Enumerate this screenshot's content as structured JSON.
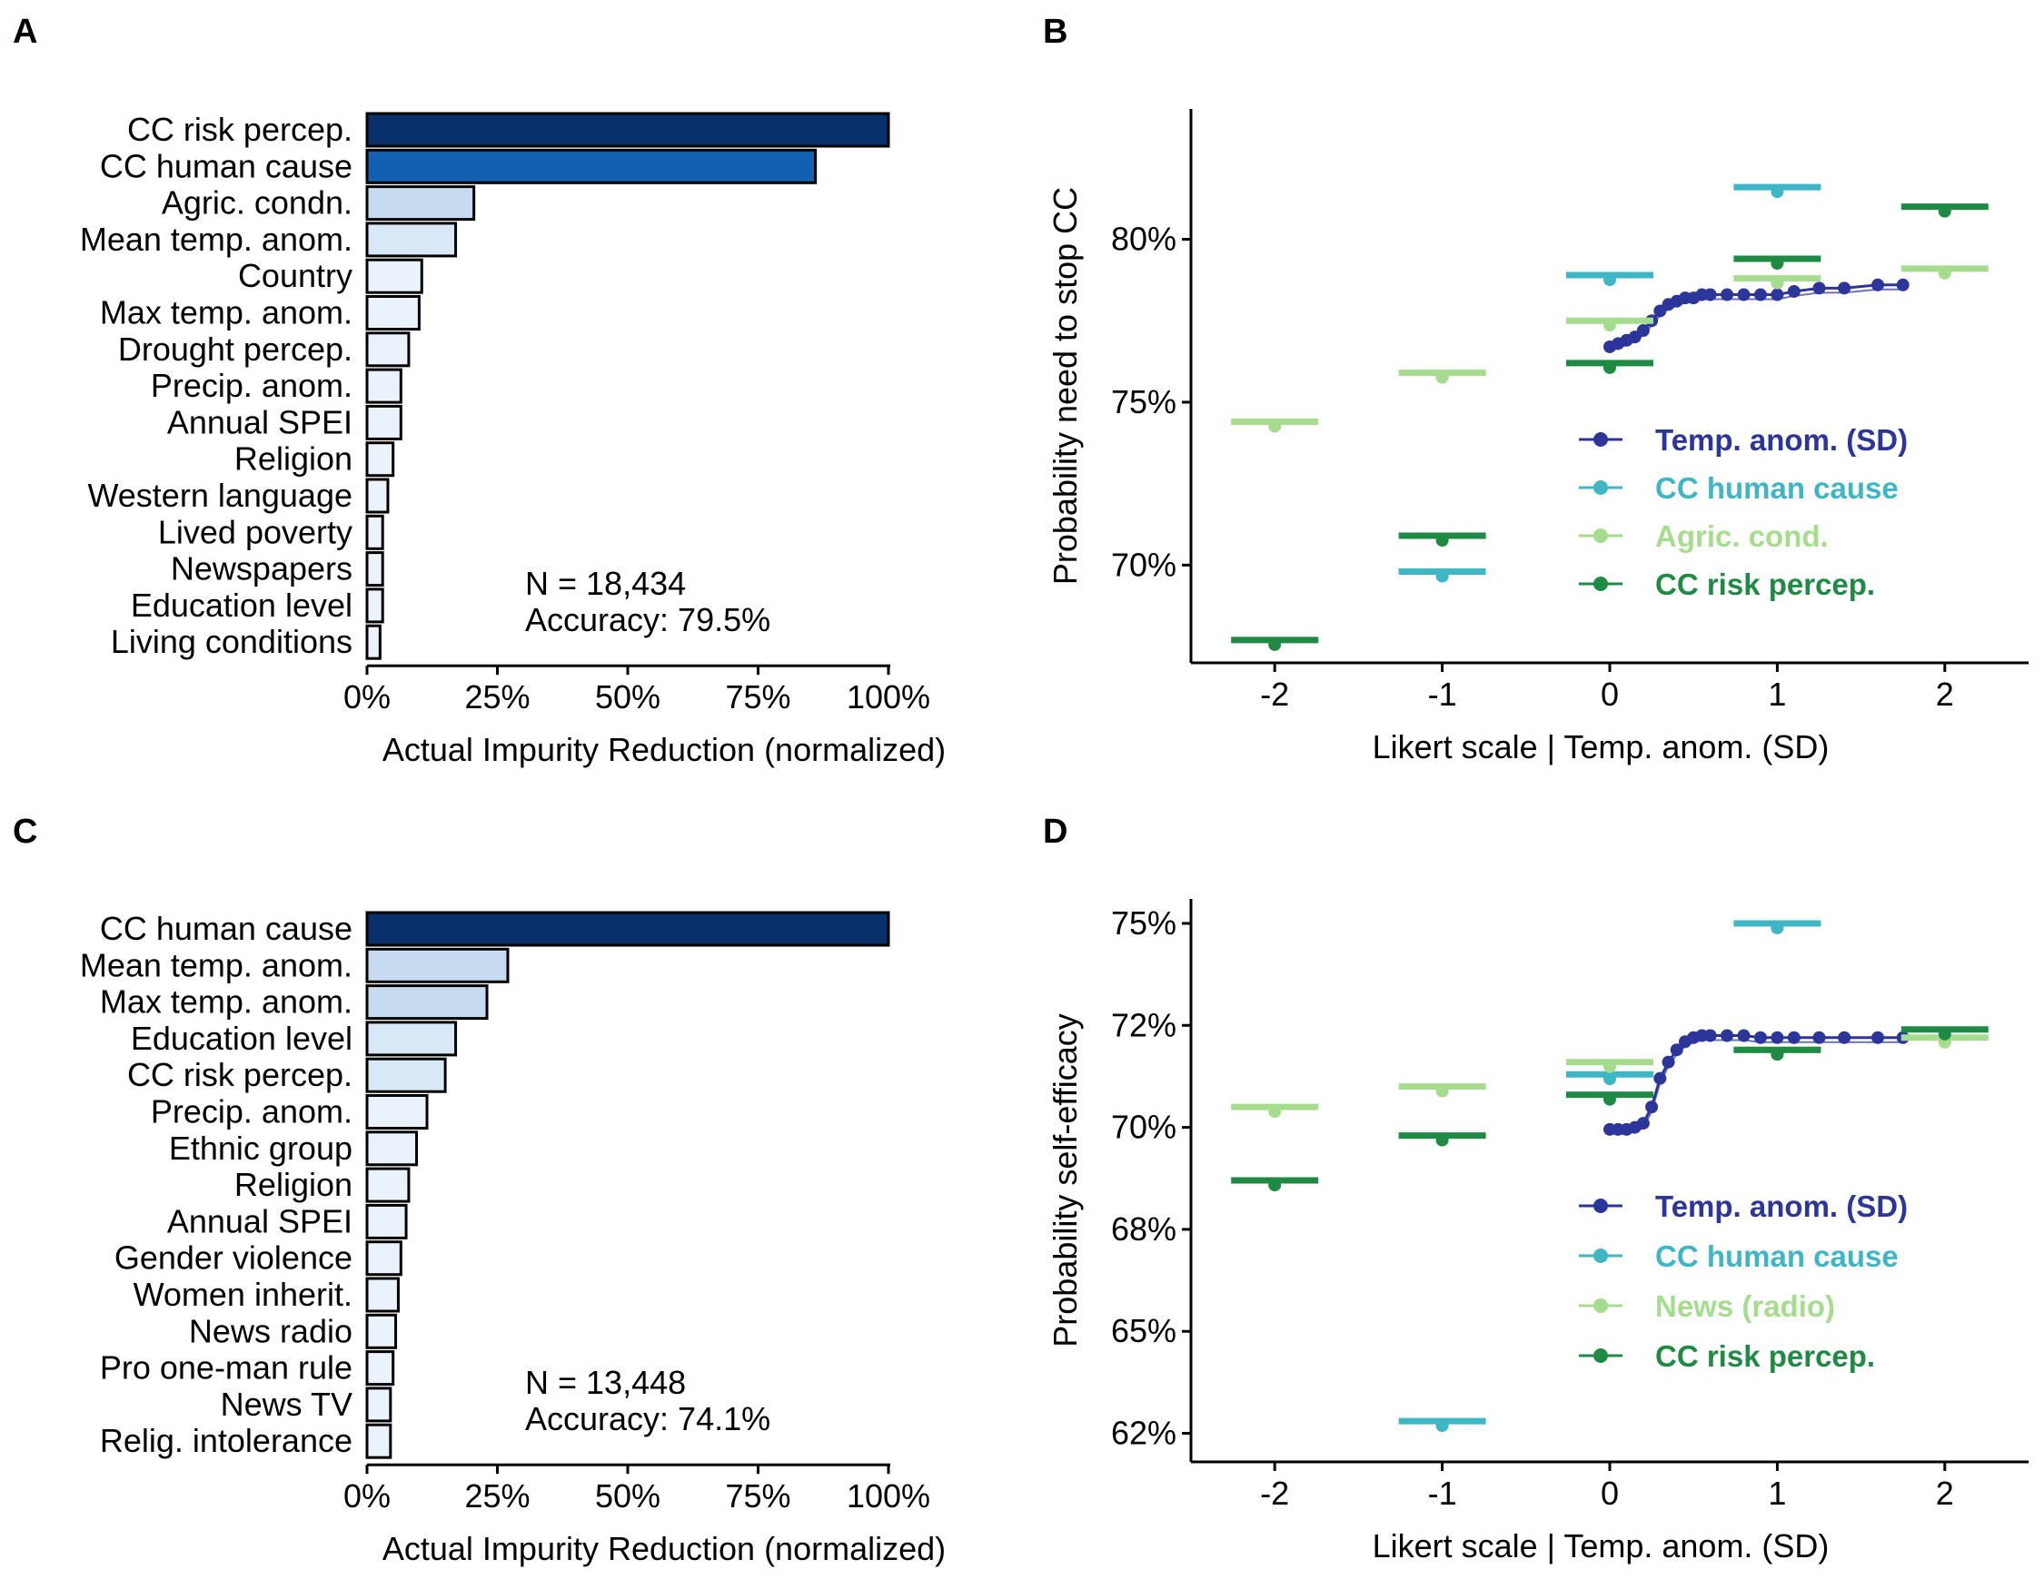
{
  "panels": [
    {
      "label": "A"
    },
    {
      "label": "B"
    },
    {
      "label": "C"
    },
    {
      "label": "D"
    }
  ],
  "colors": {
    "bar_scale": [
      "#eaf3fc",
      "#d9e8f7",
      "#c6dbef",
      "#1460b0",
      "#08306b"
    ],
    "temp_anom": "#2b359a",
    "cc_human_cause": "#3fb6c6",
    "agric_news": "#a6dc8e",
    "cc_risk_percep": "#1e8a44"
  },
  "chart_data": [
    {
      "panel": "A",
      "type": "bar",
      "orientation": "horizontal",
      "categories": [
        "CC risk percep.",
        "CC human cause",
        "Agric. condn.",
        "Mean temp. anom.",
        "Country",
        "Max temp. anom.",
        "Drought percep.",
        "Precip. anom.",
        "Annual SPEI",
        "Religion",
        "Western language",
        "Lived poverty",
        "Newspapers",
        "Education level",
        "Living conditions"
      ],
      "values": [
        100,
        86,
        20.5,
        17,
        10.5,
        10,
        8,
        6.5,
        6.5,
        5,
        4,
        3,
        3,
        3,
        2.5
      ],
      "xlabel": "Actual Impurity Reduction (normalized)",
      "xticks": [
        "0%",
        "25%",
        "50%",
        "75%",
        "100%"
      ],
      "xlim": [
        0,
        100
      ],
      "annotation": [
        "N = 18,434",
        "Accuracy: 79.5%"
      ]
    },
    {
      "panel": "B",
      "type": "line",
      "xlabel": "Likert scale | Temp. anom. (SD)",
      "ylabel": "Probability need to stop CC",
      "xticks": [
        "-2",
        "-1",
        "0",
        "1",
        "2"
      ],
      "yticks": [
        "70%",
        "75%",
        "80%"
      ],
      "xlim": [
        -2.5,
        2.5
      ],
      "ylim": [
        67,
        84
      ],
      "legend_position": "right-center",
      "legend": [
        "Temp. anom. (SD)",
        "CC human cause",
        "Agric. cond.",
        "CC risk percep."
      ],
      "series": [
        {
          "name": "Temp. anom. (SD)",
          "kind": "curve",
          "color_key": "temp_anom",
          "x": [
            0,
            0.05,
            0.1,
            0.15,
            0.2,
            0.25,
            0.3,
            0.35,
            0.4,
            0.45,
            0.5,
            0.55,
            0.6,
            0.7,
            0.8,
            0.9,
            1.0,
            1.1,
            1.25,
            1.4,
            1.6,
            1.75
          ],
          "y": [
            76.7,
            76.8,
            76.9,
            77.0,
            77.2,
            77.5,
            77.8,
            78.0,
            78.1,
            78.2,
            78.2,
            78.3,
            78.3,
            78.3,
            78.3,
            78.3,
            78.3,
            78.4,
            78.5,
            78.5,
            78.6,
            78.6
          ]
        },
        {
          "name": "CC human cause",
          "kind": "levels",
          "color_key": "cc_human_cause",
          "x": [
            -1,
            0,
            1
          ],
          "y": [
            69.8,
            78.9,
            81.6
          ]
        },
        {
          "name": "Agric. cond.",
          "kind": "levels",
          "color_key": "agric_news",
          "x": [
            -2,
            -1,
            0,
            1,
            2
          ],
          "y": [
            74.4,
            75.9,
            77.5,
            78.8,
            79.1
          ]
        },
        {
          "name": "CC risk percep.",
          "kind": "levels",
          "color_key": "cc_risk_percep",
          "x": [
            -2,
            -1,
            0,
            1,
            2
          ],
          "y": [
            67.7,
            70.9,
            76.2,
            79.4,
            81.0
          ]
        }
      ]
    },
    {
      "panel": "C",
      "type": "bar",
      "orientation": "horizontal",
      "categories": [
        "CC human cause",
        "Mean temp. anom.",
        "Max temp. anom.",
        "Education level",
        "CC risk percep.",
        "Precip. anom.",
        "Ethnic group",
        "Religion",
        "Annual SPEI",
        "Gender violence",
        "Women inherit.",
        "News radio",
        "Pro one-man rule",
        "News TV",
        "Relig. intolerance"
      ],
      "values": [
        100,
        27,
        23,
        17,
        15,
        11.5,
        9.5,
        8,
        7.5,
        6.5,
        6,
        5.5,
        5,
        4.5,
        4.5
      ],
      "xlabel": "Actual Impurity Reduction (normalized)",
      "xticks": [
        "0%",
        "25%",
        "50%",
        "75%",
        "100%"
      ],
      "xlim": [
        0,
        100
      ],
      "annotation": [
        "N = 13,448",
        "Accuracy: 74.1%"
      ]
    },
    {
      "panel": "D",
      "type": "line",
      "xlabel": "Likert scale | Temp. anom. (SD)",
      "ylabel": "Probability self-efficacy",
      "xticks": [
        "-2",
        "-1",
        "0",
        "1",
        "2"
      ],
      "yticks": [
        "62%",
        "65%",
        "68%",
        "70%",
        "72%",
        "75%"
      ],
      "ytick_values": [
        62.5,
        65,
        67.5,
        70,
        72.5,
        75
      ],
      "xlim": [
        -2.5,
        2.5
      ],
      "ylim": [
        61.8,
        75.6
      ],
      "legend_position": "right-center",
      "legend": [
        "Temp. anom. (SD)",
        "CC human cause",
        "News (radio)",
        "CC risk percep."
      ],
      "series": [
        {
          "name": "Temp. anom. (SD)",
          "kind": "curve",
          "color_key": "temp_anom",
          "x": [
            0,
            0.05,
            0.1,
            0.15,
            0.2,
            0.25,
            0.3,
            0.35,
            0.4,
            0.45,
            0.5,
            0.55,
            0.6,
            0.7,
            0.8,
            0.9,
            1.0,
            1.1,
            1.25,
            1.4,
            1.6,
            1.75
          ],
          "y": [
            69.95,
            69.95,
            69.95,
            70.0,
            70.1,
            70.5,
            71.2,
            71.6,
            71.9,
            72.1,
            72.2,
            72.25,
            72.25,
            72.25,
            72.25,
            72.2,
            72.2,
            72.2,
            72.2,
            72.2,
            72.2,
            72.2
          ]
        },
        {
          "name": "CC human cause",
          "kind": "levels",
          "color_key": "cc_human_cause",
          "x": [
            -1,
            0,
            1
          ],
          "y": [
            62.8,
            71.3,
            75.0
          ]
        },
        {
          "name": "News (radio)",
          "kind": "levels",
          "color_key": "agric_news",
          "x": [
            -2,
            -1,
            0,
            1,
            2
          ],
          "y": [
            70.5,
            71.0,
            71.6,
            71.9,
            72.2
          ]
        },
        {
          "name": "CC risk percep.",
          "kind": "levels",
          "color_key": "cc_risk_percep",
          "x": [
            -2,
            -1,
            0,
            1,
            2
          ],
          "y": [
            68.7,
            69.8,
            70.8,
            71.9,
            72.4
          ]
        }
      ]
    }
  ]
}
